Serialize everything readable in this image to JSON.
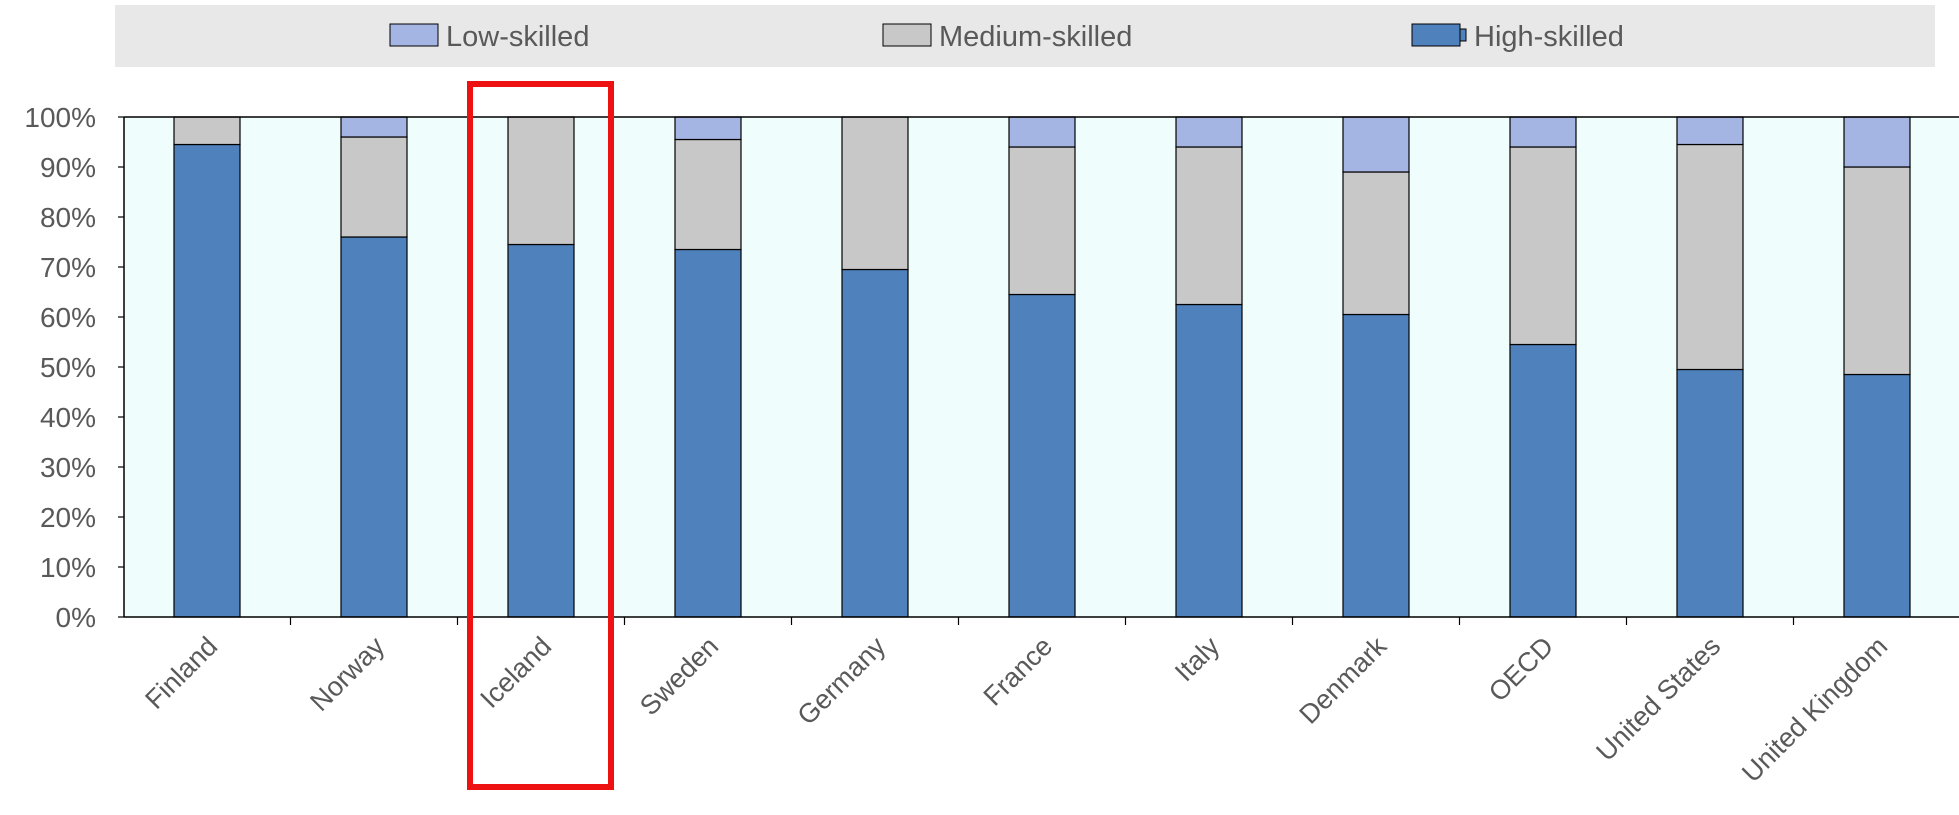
{
  "chart_data": {
    "type": "bar",
    "stacked": true,
    "percent": true,
    "title": "",
    "xlabel": "",
    "ylabel": "",
    "ylim": [
      0,
      100
    ],
    "yticks": [
      "0%",
      "10%",
      "20%",
      "30%",
      "40%",
      "50%",
      "60%",
      "70%",
      "80%",
      "90%",
      "100%"
    ],
    "grid": false,
    "legend_position": "top",
    "categories": [
      "Finland",
      "Norway",
      "Iceland",
      "Sweden",
      "Germany",
      "France",
      "Italy",
      "Denmark",
      "OECD",
      "United States",
      "United Kingdom"
    ],
    "series": [
      {
        "name": "High-skilled",
        "color": "#4f81bd",
        "values": [
          94.5,
          76.0,
          74.5,
          73.5,
          69.5,
          64.5,
          62.5,
          60.5,
          54.5,
          49.5,
          48.5
        ]
      },
      {
        "name": "Medium-skilled",
        "color": "#c8c8c8",
        "values": [
          5.5,
          20.0,
          25.5,
          22.0,
          30.5,
          29.5,
          31.5,
          28.5,
          39.5,
          45.0,
          41.5
        ]
      },
      {
        "name": "Low-skilled",
        "color": "#a5b5e3",
        "values": [
          0.0,
          4.0,
          0.0,
          4.5,
          0.0,
          6.0,
          6.0,
          11.0,
          6.0,
          5.5,
          10.0
        ]
      }
    ],
    "legend_order": [
      "Low-skilled",
      "Medium-skilled",
      "High-skilled"
    ],
    "highlight": {
      "category": "Iceland",
      "color": "#ee1111"
    },
    "colors": {
      "plot_background": "#f0fdfd",
      "legend_background": "#e8e8e8",
      "axis": "#000000",
      "tick_text": "#595959"
    }
  }
}
